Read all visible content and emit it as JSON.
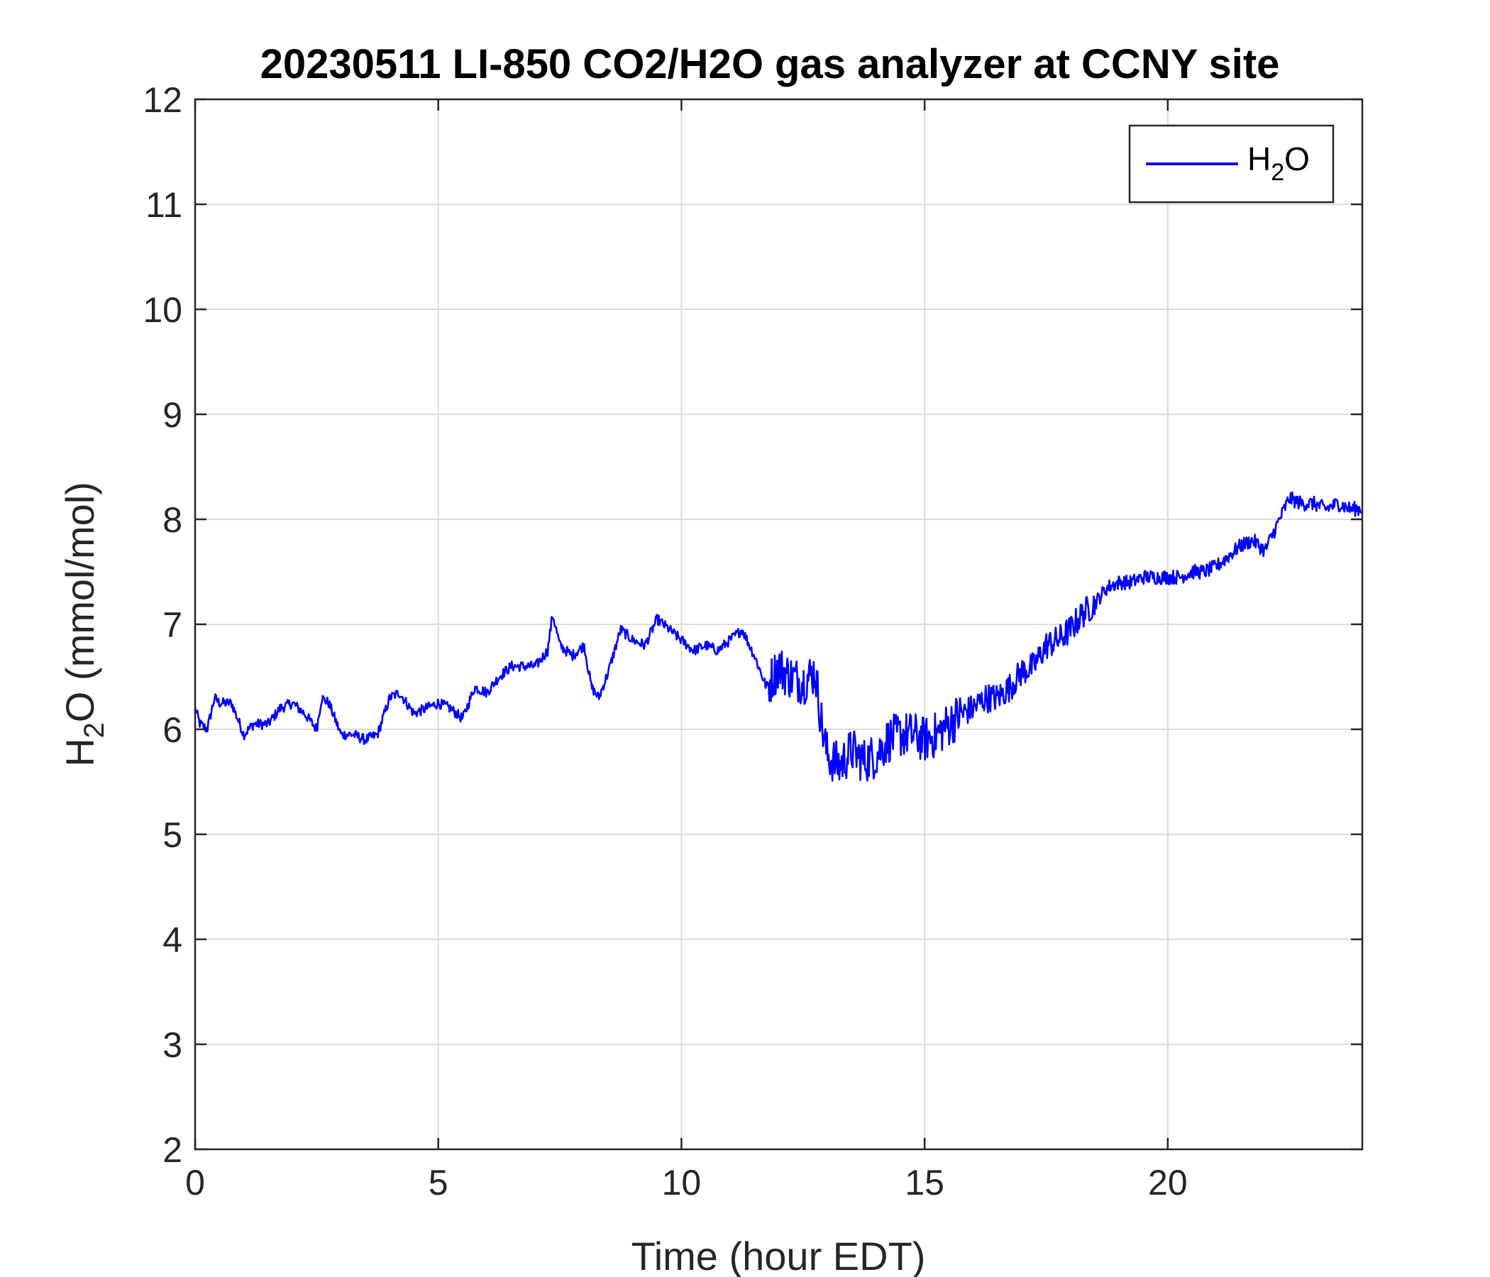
{
  "chart_data": {
    "type": "line",
    "title": "20230511 LI-850 CO2/H2O gas analyzer at CCNY site",
    "xlabel": "Time (hour EDT)",
    "ylabel": {
      "main": "H",
      "sub": "2",
      "rest": "O (mmol/mol)"
    },
    "xlim": [
      0,
      24
    ],
    "ylim": [
      2,
      12
    ],
    "xticks": [
      0,
      5,
      10,
      15,
      20
    ],
    "yticks": [
      2,
      3,
      4,
      5,
      6,
      7,
      8,
      9,
      10,
      11,
      12
    ],
    "grid": true,
    "legend_position": "top-right",
    "legend": {
      "main": "H",
      "sub": "2",
      "rest": "O"
    },
    "series": [
      {
        "color": "#0000ff",
        "x": [
          0,
          0.1,
          0.25,
          0.4,
          0.5,
          0.75,
          1.0,
          1.2,
          1.5,
          1.75,
          2.0,
          2.25,
          2.5,
          2.6,
          2.75,
          3.0,
          3.25,
          3.5,
          3.75,
          4.0,
          4.2,
          4.5,
          4.75,
          5.0,
          5.25,
          5.5,
          5.75,
          6.0,
          6.25,
          6.5,
          6.75,
          7.0,
          7.25,
          7.35,
          7.5,
          7.75,
          8.0,
          8.15,
          8.3,
          8.5,
          8.75,
          9.0,
          9.25,
          9.5,
          9.75,
          10.0,
          10.25,
          10.5,
          10.75,
          11.0,
          11.25,
          11.5,
          11.75,
          12.0,
          12.1,
          12.25,
          12.5,
          12.75,
          12.9,
          13.0,
          13.25,
          13.5,
          13.75,
          14.0,
          14.25,
          14.5,
          14.75,
          15.0,
          15.25,
          15.5,
          15.75,
          16.0,
          16.25,
          16.5,
          16.75,
          17.0,
          17.25,
          17.5,
          17.75,
          18.0,
          18.25,
          18.5,
          18.75,
          19.0,
          19.25,
          19.5,
          19.75,
          20.0,
          20.25,
          20.5,
          20.75,
          21.0,
          21.25,
          21.5,
          21.75,
          22.0,
          22.25,
          22.5,
          22.75,
          23.0,
          23.25,
          23.5,
          23.75,
          24.0
        ],
        "y": [
          6.2,
          6.05,
          6.0,
          6.3,
          6.25,
          6.25,
          5.95,
          6.05,
          6.05,
          6.2,
          6.25,
          6.15,
          6.0,
          6.3,
          6.25,
          5.95,
          5.95,
          5.9,
          5.95,
          6.3,
          6.35,
          6.15,
          6.2,
          6.25,
          6.2,
          6.1,
          6.4,
          6.35,
          6.5,
          6.6,
          6.6,
          6.6,
          6.75,
          7.1,
          6.8,
          6.7,
          6.8,
          6.4,
          6.3,
          6.55,
          6.95,
          6.85,
          6.8,
          7.05,
          6.95,
          6.85,
          6.75,
          6.8,
          6.75,
          6.85,
          6.95,
          6.7,
          6.4,
          6.6,
          6.55,
          6.5,
          6.45,
          6.55,
          6.0,
          5.75,
          5.65,
          5.8,
          5.7,
          5.75,
          5.9,
          5.95,
          5.95,
          5.9,
          5.95,
          6.05,
          6.15,
          6.2,
          6.3,
          6.3,
          6.4,
          6.55,
          6.6,
          6.8,
          6.85,
          6.95,
          7.1,
          7.2,
          7.35,
          7.4,
          7.4,
          7.45,
          7.45,
          7.45,
          7.45,
          7.5,
          7.5,
          7.55,
          7.65,
          7.75,
          7.8,
          7.7,
          7.95,
          8.2,
          8.15,
          8.15,
          8.1,
          8.15,
          8.1,
          8.1
        ]
      }
    ]
  }
}
